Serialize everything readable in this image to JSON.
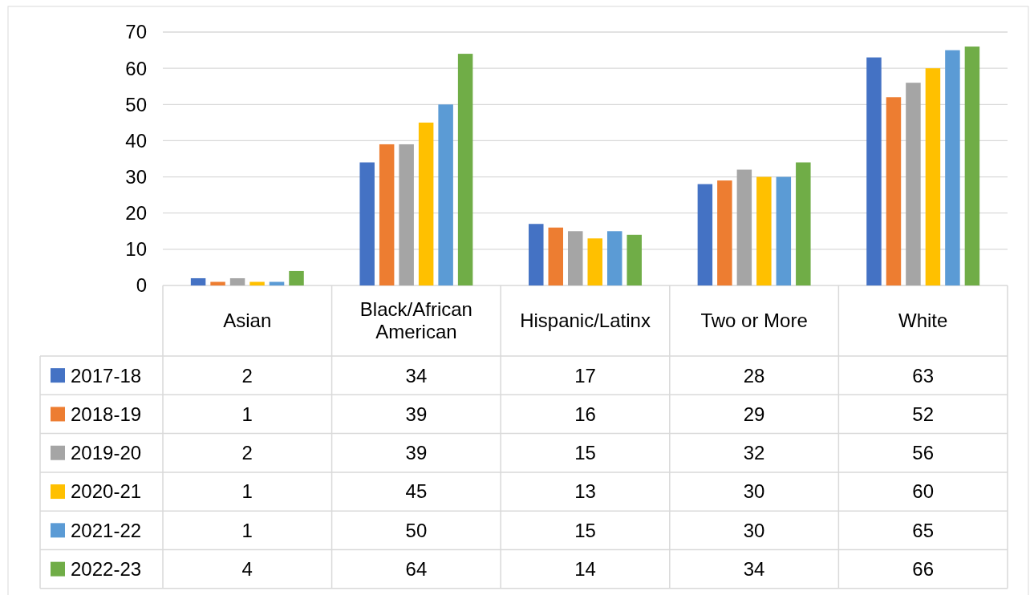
{
  "chart_data": {
    "type": "bar",
    "categories": [
      "Asian",
      "Black/African American",
      "Hispanic/Latinx",
      "Two or More",
      "White"
    ],
    "series": [
      {
        "name": "2017-18",
        "color": "#4472c4",
        "values": [
          2,
          34,
          17,
          28,
          63
        ]
      },
      {
        "name": "2018-19",
        "color": "#ed7d31",
        "values": [
          1,
          39,
          16,
          29,
          52
        ]
      },
      {
        "name": "2019-20",
        "color": "#a5a5a5",
        "values": [
          2,
          39,
          15,
          32,
          56
        ]
      },
      {
        "name": "2020-21",
        "color": "#ffc000",
        "values": [
          1,
          45,
          13,
          30,
          60
        ]
      },
      {
        "name": "2021-22",
        "color": "#5b9bd5",
        "values": [
          1,
          50,
          15,
          30,
          65
        ]
      },
      {
        "name": "2022-23",
        "color": "#70ad47",
        "values": [
          4,
          64,
          14,
          34,
          66
        ]
      }
    ],
    "ylim": [
      0,
      70
    ],
    "yticks": [
      0,
      10,
      20,
      30,
      40,
      50,
      60,
      70
    ],
    "grid": "y",
    "legend": "bottom",
    "data_labels": true
  }
}
